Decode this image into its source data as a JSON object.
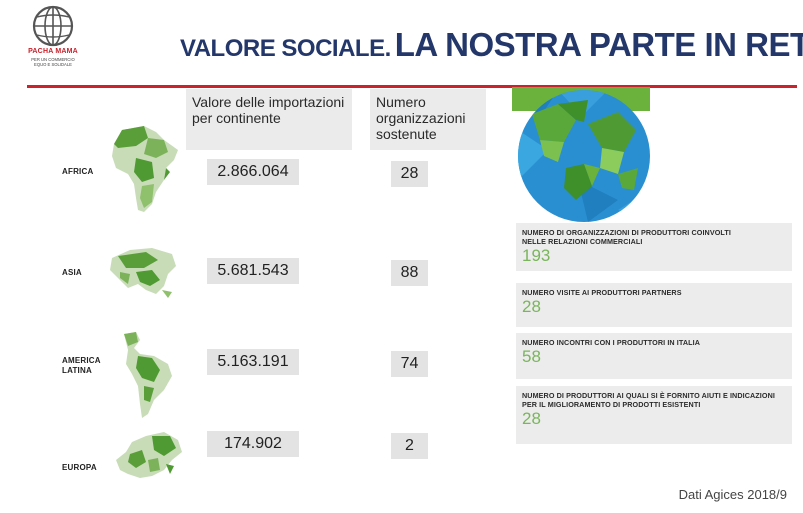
{
  "header": {
    "logo_name": "PACHA MAMA",
    "logo_sub_1": "PER UN COMMERCIO",
    "logo_sub_2": "EQUO E SOLIDALE",
    "title_small": "VALORE SOCIALE.",
    "title_large": "LA NOSTRA PARTE IN RETE."
  },
  "columns": {
    "value_header": "Valore delle importazioni per continente",
    "orgs_header": "Numero organizzazioni sostenute"
  },
  "continents": [
    {
      "name": "AFRICA",
      "value": "2.866.064",
      "orgs": "28"
    },
    {
      "name": "ASIA",
      "value": "5.681.543",
      "orgs": "88"
    },
    {
      "name": "AMERICA LATINA",
      "value": "5.163.191",
      "orgs": "74"
    },
    {
      "name": "EUROPA",
      "value": "174.902",
      "orgs": "2"
    }
  ],
  "stats": [
    {
      "label": "NUMERO DI ORGANIZZAZIONI DI PRODUTTORI COINVOLTI NELLE RELAZIONI COMMERCIALI",
      "value": "193"
    },
    {
      "label": "NUMERO VISITE AI PRODUTTORI PARTNERS",
      "value": "28"
    },
    {
      "label": "NUMERO INCONTRI CON I PRODUTTORI IN ITALIA",
      "value": "58"
    },
    {
      "label": "NUMERO DI PRODUTTORI AI QUALI SI È FORNITO AIUTI E INDICAZIONI PER IL MIGLIORAMENTO DI PRODOTTI ESISTENTI",
      "value": "28"
    }
  ],
  "footer": {
    "source": "Dati Agices 2018/9"
  },
  "colors": {
    "title": "#24376a",
    "accent_red": "#c9242b",
    "map_green": "#4f9a32",
    "stat_green": "#7ab55c",
    "globe_blue": "#2a8fd0"
  },
  "icons": [
    "globe-logo-icon",
    "africa-map-icon",
    "asia-map-icon",
    "latin-america-map-icon",
    "europe-map-icon",
    "globe-illustration-icon"
  ]
}
